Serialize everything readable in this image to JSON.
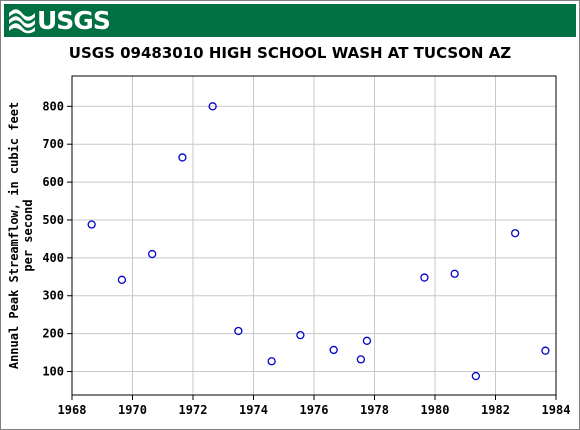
{
  "header": {
    "logo_text": "USGS",
    "banner_color": "#006f41"
  },
  "chart_data": {
    "type": "scatter",
    "title": "USGS 09483010 HIGH SCHOOL WASH AT TUCSON AZ",
    "xlabel": "",
    "ylabel_line1": "Annual Peak Streamflow, in cubic feet",
    "ylabel_line2": "per second",
    "xlim": [
      1968,
      1984
    ],
    "ylim": [
      38,
      880
    ],
    "x_ticks": [
      1968,
      1970,
      1972,
      1974,
      1976,
      1978,
      1980,
      1982,
      1984
    ],
    "y_ticks": [
      100,
      200,
      300,
      400,
      500,
      600,
      700,
      800
    ],
    "grid": true,
    "marker_color": "#0000cc",
    "points": [
      {
        "x": 1968.65,
        "y": 488
      },
      {
        "x": 1969.65,
        "y": 342
      },
      {
        "x": 1970.65,
        "y": 410
      },
      {
        "x": 1971.65,
        "y": 665
      },
      {
        "x": 1972.65,
        "y": 800
      },
      {
        "x": 1973.5,
        "y": 207
      },
      {
        "x": 1974.6,
        "y": 127
      },
      {
        "x": 1975.55,
        "y": 196
      },
      {
        "x": 1976.65,
        "y": 157
      },
      {
        "x": 1977.55,
        "y": 132
      },
      {
        "x": 1977.75,
        "y": 181
      },
      {
        "x": 1979.65,
        "y": 348
      },
      {
        "x": 1980.65,
        "y": 358
      },
      {
        "x": 1981.35,
        "y": 88
      },
      {
        "x": 1982.65,
        "y": 465
      },
      {
        "x": 1983.65,
        "y": 155
      }
    ]
  }
}
